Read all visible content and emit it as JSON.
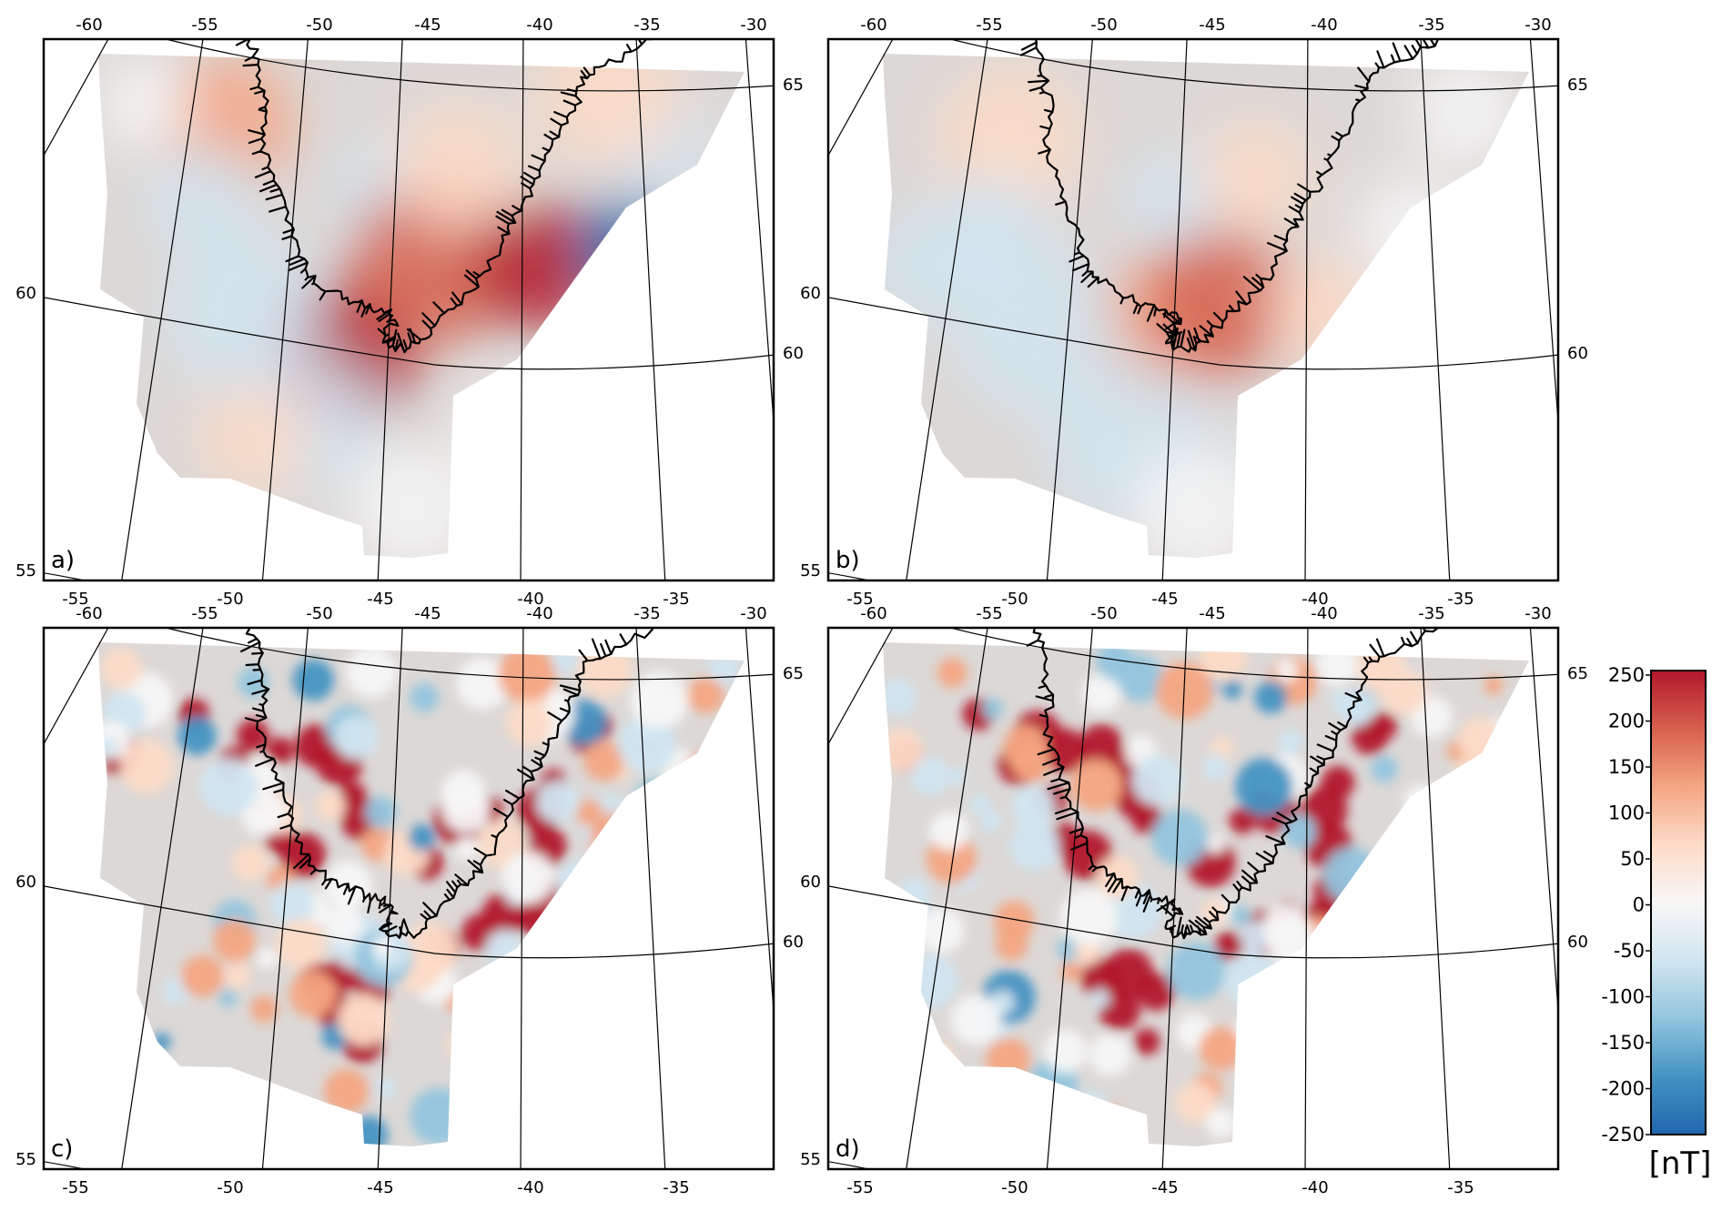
{
  "panels": [
    {
      "label": "a)",
      "type": "smooth",
      "strength": 1.0
    },
    {
      "label": "b)",
      "type": "smooth",
      "strength": 0.78
    },
    {
      "label": "c)",
      "type": "detailed",
      "strength": 1.0
    },
    {
      "label": "d)",
      "type": "detailed",
      "strength": 0.95
    }
  ],
  "axes": {
    "top_lon_ticks": [
      "-60",
      "-55",
      "-50",
      "-45",
      "-40",
      "-35",
      "-30"
    ],
    "bottom_lon_ticks": [
      "-55",
      "-50",
      "-45",
      "-40",
      "-35"
    ],
    "left_lat_ticks": [
      "60",
      "55"
    ],
    "right_lat_ticks": [
      "65",
      "60"
    ]
  },
  "colorbar": {
    "ticks": [
      "250",
      "200",
      "150",
      "100",
      "50",
      "0",
      "-50",
      "-100",
      "-150",
      "-200",
      "-250"
    ],
    "unit": "[nT]",
    "range": [
      -250,
      250
    ],
    "colors": [
      "#2166ac",
      "#4393c3",
      "#92c5de",
      "#d1e5f0",
      "#f7f7f7",
      "#fddbc7",
      "#f4a582",
      "#d6604d",
      "#b2182b"
    ]
  },
  "colors": {
    "frame": "#000000",
    "graticule": "#000000",
    "coastline": "#000000"
  }
}
